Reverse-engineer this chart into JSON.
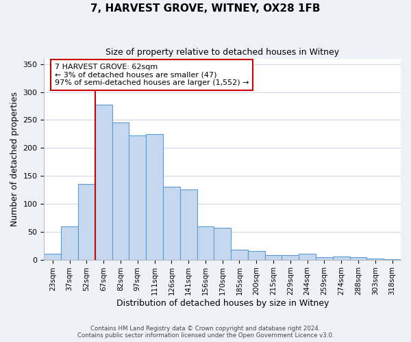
{
  "title": "7, HARVEST GROVE, WITNEY, OX28 1FB",
  "subtitle": "Size of property relative to detached houses in Witney",
  "xlabel": "Distribution of detached houses by size in Witney",
  "ylabel": "Number of detached properties",
  "bar_labels": [
    "23sqm",
    "37sqm",
    "52sqm",
    "67sqm",
    "82sqm",
    "97sqm",
    "111sqm",
    "126sqm",
    "141sqm",
    "156sqm",
    "170sqm",
    "185sqm",
    "200sqm",
    "215sqm",
    "229sqm",
    "244sqm",
    "259sqm",
    "274sqm",
    "288sqm",
    "303sqm",
    "318sqm"
  ],
  "bar_values": [
    10,
    60,
    135,
    278,
    245,
    222,
    225,
    130,
    125,
    60,
    57,
    18,
    15,
    8,
    8,
    10,
    4,
    6,
    5,
    2,
    1
  ],
  "bar_color": "#c5d8f0",
  "bar_edge_color": "#5b9bd5",
  "vline_x": 2.5,
  "vline_color": "#cc0000",
  "annotation_text": "7 HARVEST GROVE: 62sqm\n← 3% of detached houses are smaller (47)\n97% of semi-detached houses are larger (1,552) →",
  "annotation_box_color": "#ffffff",
  "annotation_box_edge": "#cc0000",
  "ylim": [
    0,
    360
  ],
  "yticks": [
    0,
    50,
    100,
    150,
    200,
    250,
    300,
    350
  ],
  "footer_line1": "Contains HM Land Registry data © Crown copyright and database right 2024.",
  "footer_line2": "Contains public sector information licensed under the Open Government Licence v3.0.",
  "bg_color": "#eef2f8",
  "plot_bg_color": "#ffffff",
  "grid_color": "#d0d8e8"
}
